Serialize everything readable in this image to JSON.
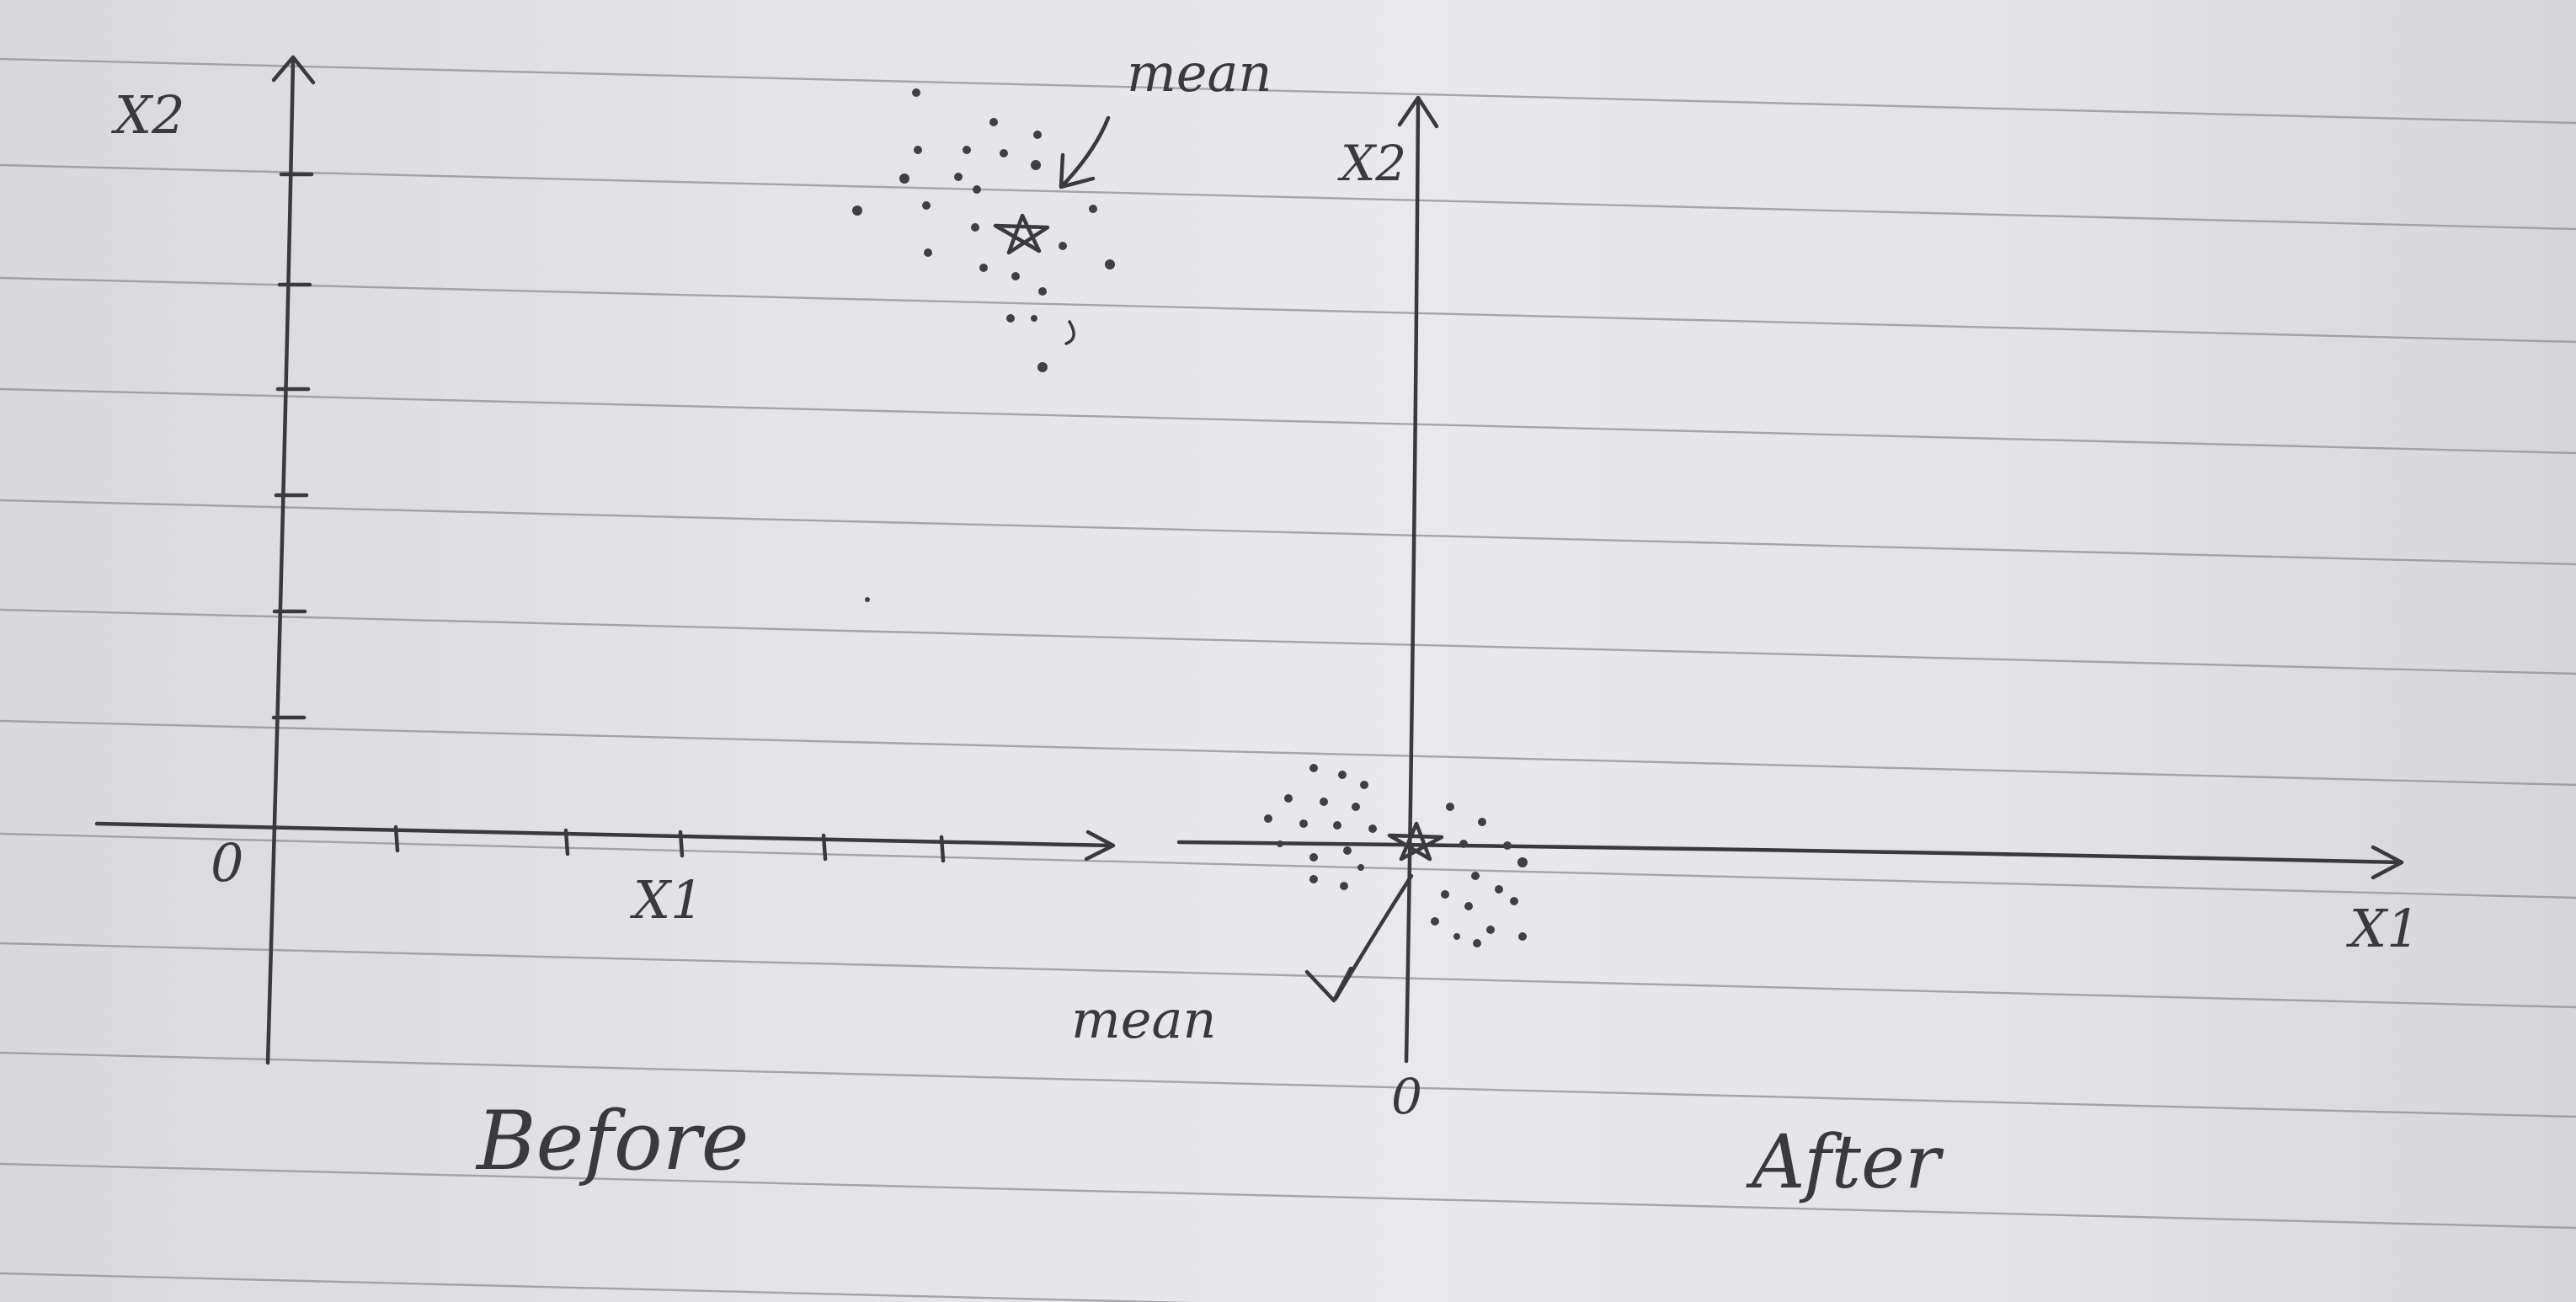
{
  "left_plot": {
    "caption": "Before",
    "x_axis_label": "X1",
    "y_axis_label": "X2",
    "origin_label": "0",
    "mean_label": "mean"
  },
  "right_plot": {
    "caption": "After",
    "x_axis_label": "X1",
    "y_axis_label": "X2",
    "origin_label": "0",
    "mean_label": "mean"
  },
  "colors": {
    "paper": "#e6e6e8",
    "ink": "#3a3a3e",
    "ruled_line": "#8d8f96"
  }
}
